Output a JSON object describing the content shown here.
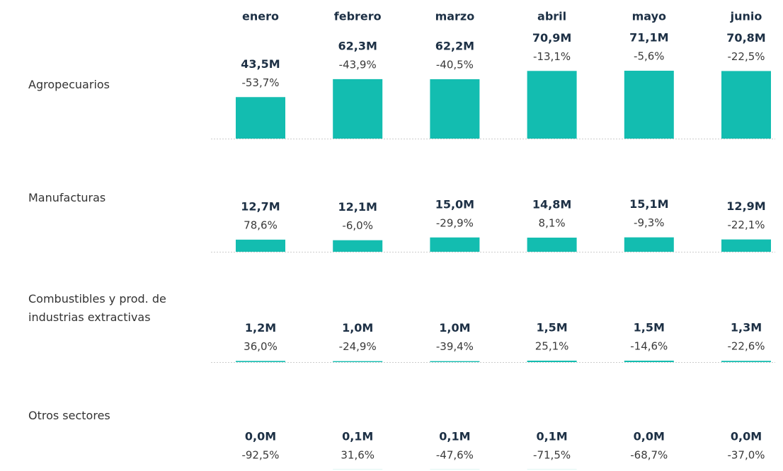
{
  "chart_data": {
    "type": "bar",
    "categories": [
      "enero",
      "febrero",
      "marzo",
      "abril",
      "mayo",
      "junio"
    ],
    "ylim": [
      0,
      80
    ],
    "color": "#13bdb0",
    "series": [
      {
        "name": "Agropecuarios",
        "color": "#13bdb0",
        "values": [
          43.5,
          62.3,
          62.2,
          70.9,
          71.1,
          70.8
        ],
        "value_labels": [
          "43,5M",
          "62,3M",
          "62,2M",
          "70,9M",
          "71,1M",
          "70,8M"
        ],
        "changes": [
          -53.7,
          -43.9,
          -40.5,
          -13.1,
          -5.6,
          -22.5
        ],
        "change_labels": [
          "-53,7%",
          "-43,9%",
          "-40,5%",
          "-13,1%",
          "-5,6%",
          "-22,5%"
        ]
      },
      {
        "name": "Manufacturas",
        "color": "#13bdb0",
        "values": [
          12.7,
          12.1,
          15.0,
          14.8,
          15.1,
          12.9
        ],
        "value_labels": [
          "12,7M",
          "12,1M",
          "15,0M",
          "14,8M",
          "15,1M",
          "12,9M"
        ],
        "changes": [
          78.6,
          -6.0,
          -29.9,
          8.1,
          -9.3,
          -22.1
        ],
        "change_labels": [
          "78,6%",
          "-6,0%",
          "-29,9%",
          "8,1%",
          "-9,3%",
          "-22,1%"
        ]
      },
      {
        "name": "Combustibles y prod. de industrias extractivas",
        "color": "#13bdb0",
        "values": [
          1.2,
          1.0,
          1.0,
          1.5,
          1.5,
          1.3
        ],
        "value_labels": [
          "1,2M",
          "1,0M",
          "1,0M",
          "1,5M",
          "1,5M",
          "1,3M"
        ],
        "changes": [
          36.0,
          -24.9,
          -39.4,
          25.1,
          -14.6,
          -22.6
        ],
        "change_labels": [
          "36,0%",
          "-24,9%",
          "-39,4%",
          "25,1%",
          "-14,6%",
          "-22,6%"
        ]
      },
      {
        "name": "Otros sectores",
        "color": "#13bdb0",
        "values": [
          0.0,
          0.1,
          0.1,
          0.1,
          0.0,
          0.0
        ],
        "value_labels": [
          "0,0M",
          "0,1M",
          "0,1M",
          "0,1M",
          "0,0M",
          "0,0M"
        ],
        "changes": [
          -92.5,
          31.6,
          -47.6,
          -71.5,
          -68.7,
          -37.0
        ],
        "change_labels": [
          "-92,5%",
          "31,6%",
          "-47,6%",
          "-71,5%",
          "-68,7%",
          "-37,0%"
        ]
      }
    ]
  }
}
